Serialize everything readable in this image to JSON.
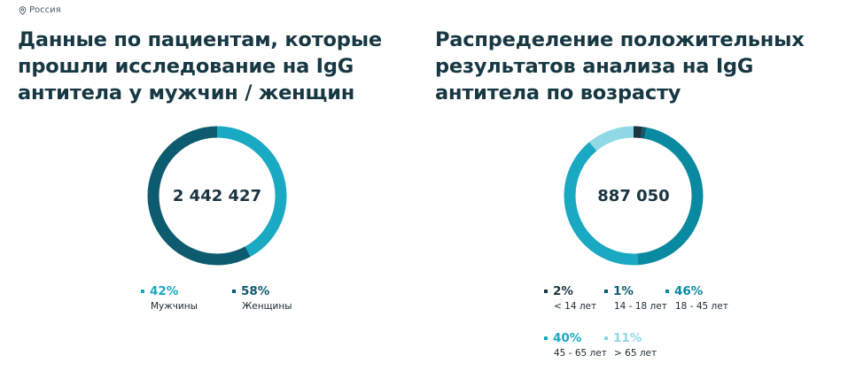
{
  "location": {
    "icon": "map-pin-icon",
    "label": "Россия"
  },
  "colors": {
    "dark_navy": "#1b3440",
    "dark_teal": "#0d5b6e",
    "teal": "#0a8aa0",
    "cyan": "#1aa9c2",
    "light_cyan": "#8fd8e6"
  },
  "left": {
    "title": "Данные по пациентам, которые прошли исследование на IgG антитела у мужчин / женщин",
    "total": "2 442 427",
    "legend": [
      {
        "pct": "42%",
        "label": "Мужчины",
        "color": "#1aa9c2"
      },
      {
        "pct": "58%",
        "label": "Женщины",
        "color": "#0d5b6e"
      }
    ]
  },
  "right": {
    "title": "Распределение положительных результатов анализа на IgG антитела по возрасту",
    "total": "887 050",
    "legend": [
      {
        "pct": "2%",
        "label": "< 14 лет",
        "color": "#1b3440"
      },
      {
        "pct": "1%",
        "label": "14 - 18 лет",
        "color": "#0d5b6e"
      },
      {
        "pct": "46%",
        "label": "18 - 45 лет",
        "color": "#0a8aa0"
      },
      {
        "pct": "40%",
        "label": "45 - 65 лет",
        "color": "#1aa9c2"
      },
      {
        "pct": "11%",
        "label": "> 65 лет",
        "color": "#8fd8e6"
      }
    ]
  },
  "chart_data": [
    {
      "type": "pie",
      "style": "donut",
      "title": "Данные по пациентам, которые прошли исследование на IgG антитела у мужчин / женщин",
      "center_label": "2 442 427",
      "categories": [
        "Мужчины",
        "Женщины"
      ],
      "values": [
        42,
        58
      ],
      "colors": [
        "#1aa9c2",
        "#0d5b6e"
      ],
      "unit": "%",
      "legend_position": "bottom"
    },
    {
      "type": "pie",
      "style": "donut",
      "title": "Распределение положительных результатов анализа на IgG антитела по возрасту",
      "center_label": "887 050",
      "categories": [
        "< 14 лет",
        "14 - 18 лет",
        "18 - 45 лет",
        "45 - 65 лет",
        "> 65 лет"
      ],
      "values": [
        2,
        1,
        46,
        40,
        11
      ],
      "colors": [
        "#1b3440",
        "#0d5b6e",
        "#0a8aa0",
        "#1aa9c2",
        "#8fd8e6"
      ],
      "unit": "%",
      "legend_position": "bottom"
    }
  ]
}
